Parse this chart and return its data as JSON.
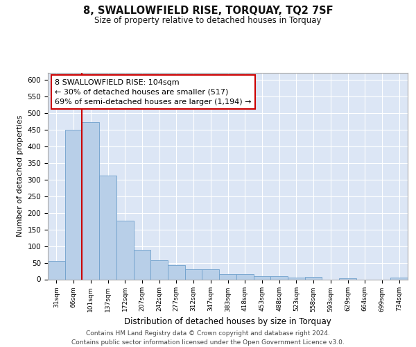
{
  "title": "8, SWALLOWFIELD RISE, TORQUAY, TQ2 7SF",
  "subtitle": "Size of property relative to detached houses in Torquay",
  "xlabel": "Distribution of detached houses by size in Torquay",
  "ylabel": "Number of detached properties",
  "categories": [
    "31sqm",
    "66sqm",
    "101sqm",
    "137sqm",
    "172sqm",
    "207sqm",
    "242sqm",
    "277sqm",
    "312sqm",
    "347sqm",
    "383sqm",
    "418sqm",
    "453sqm",
    "488sqm",
    "523sqm",
    "558sqm",
    "593sqm",
    "629sqm",
    "664sqm",
    "699sqm",
    "734sqm"
  ],
  "values": [
    55,
    450,
    472,
    311,
    176,
    88,
    58,
    43,
    30,
    30,
    15,
    15,
    10,
    10,
    6,
    8,
    0,
    4,
    0,
    0,
    5
  ],
  "bar_color": "#b8cfe8",
  "bar_edge_color": "#6fa0cc",
  "vline_color": "#cc0000",
  "vline_xidx": 2,
  "annotation_line1": "8 SWALLOWFIELD RISE: 104sqm",
  "annotation_line2": "← 30% of detached houses are smaller (517)",
  "annotation_line3": "69% of semi-detached houses are larger (1,194) →",
  "annotation_box_edge": "#cc0000",
  "ylim": [
    0,
    620
  ],
  "yticks": [
    0,
    50,
    100,
    150,
    200,
    250,
    300,
    350,
    400,
    450,
    500,
    550,
    600
  ],
  "grid_color": "#ffffff",
  "background_color": "#dce6f5",
  "footer_line1": "Contains HM Land Registry data © Crown copyright and database right 2024.",
  "footer_line2": "Contains public sector information licensed under the Open Government Licence v3.0."
}
